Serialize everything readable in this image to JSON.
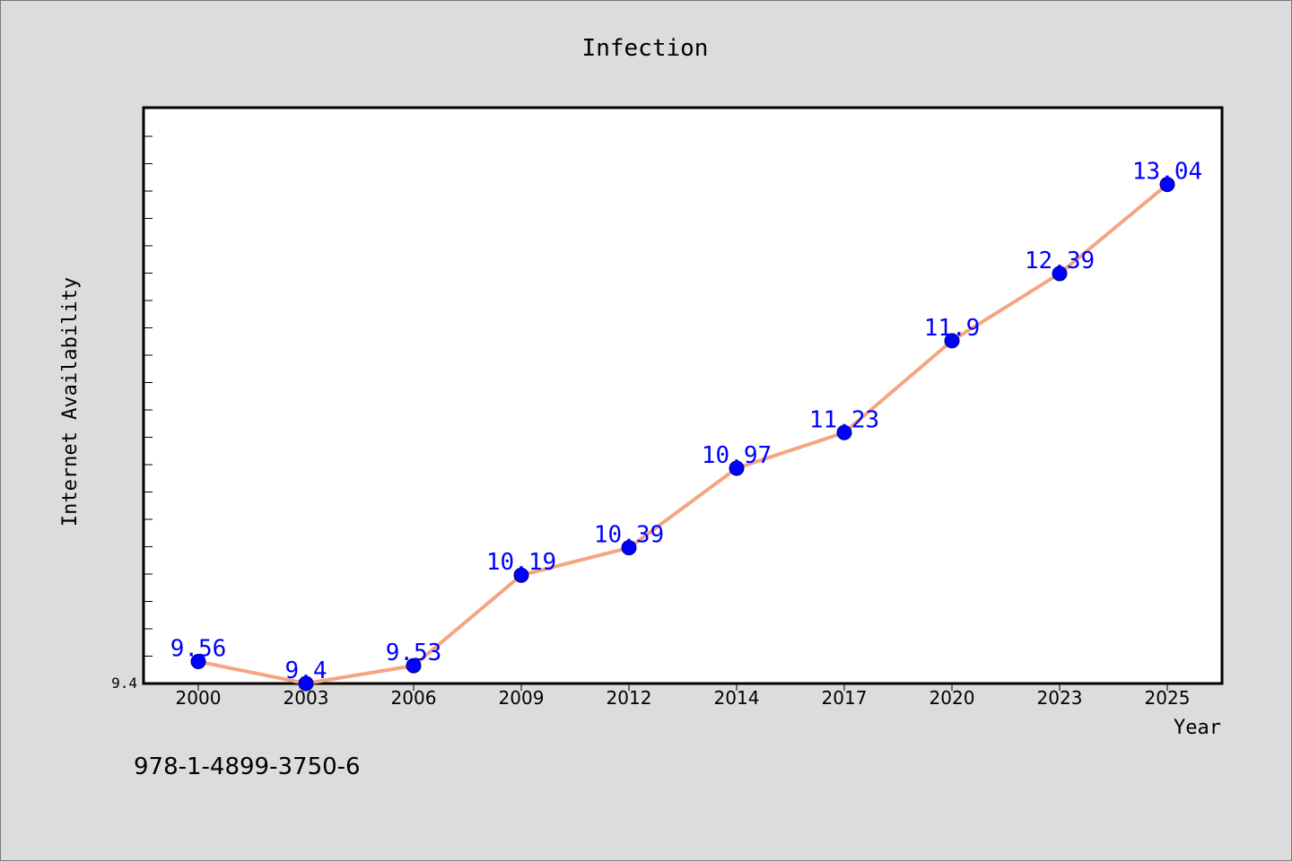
{
  "chart_data": {
    "type": "line",
    "title": "Infection",
    "xlabel": "Year",
    "ylabel": "Internet Availability",
    "categories": [
      "2000",
      "2003",
      "2006",
      "2009",
      "2012",
      "2014",
      "2017",
      "2020",
      "2023",
      "2025"
    ],
    "values": [
      9.56,
      9.4,
      9.53,
      10.19,
      10.39,
      10.97,
      11.23,
      11.9,
      12.39,
      13.04
    ],
    "data_labels": [
      "9.56",
      "9.4",
      "9.53",
      "10.19",
      "10.39",
      "10.97",
      "11.23",
      "11.9",
      "12.39",
      "13.04"
    ],
    "y_tick_labels": [
      "9.4"
    ],
    "ylim": [
      9.4,
      13.6
    ],
    "grid": false,
    "line_color": "#f4a582",
    "marker_color": "#0000ff",
    "label_color": "#0000ff"
  },
  "footer": {
    "isbn": "978-1-4899-3750-6"
  }
}
